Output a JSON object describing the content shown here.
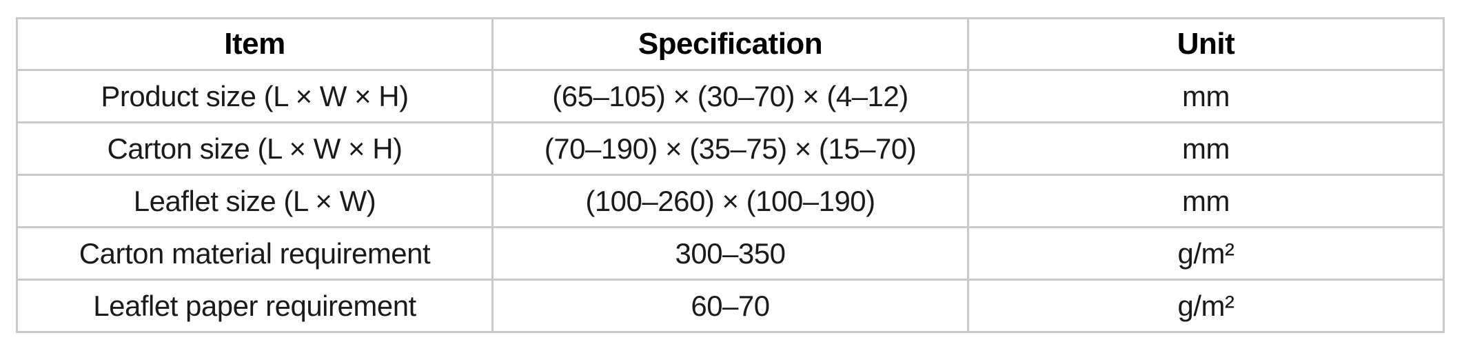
{
  "table": {
    "columns": [
      {
        "label": "Item"
      },
      {
        "label": "Specification"
      },
      {
        "label": "Unit"
      }
    ],
    "rows": [
      {
        "item": "Product size (L × W × H)",
        "specification": "(65–105) × (30–70) × (4–12)",
        "unit": "mm"
      },
      {
        "item": "Carton size (L × W × H)",
        "specification": "(70–190) × (35–75) × (15–70)",
        "unit": "mm"
      },
      {
        "item": "Leaflet size (L × W)",
        "specification": "(100–260) × (100–190)",
        "unit": "mm"
      },
      {
        "item": "Carton material requirement",
        "specification": "300–350",
        "unit": "g/m²"
      },
      {
        "item": "Leaflet paper requirement",
        "specification": "60–70",
        "unit": "g/m²"
      }
    ],
    "colors": {
      "border": "#c9c9c9",
      "header_text": "#000000",
      "body_text": "#1a1a1a",
      "background": "#ffffff"
    }
  }
}
